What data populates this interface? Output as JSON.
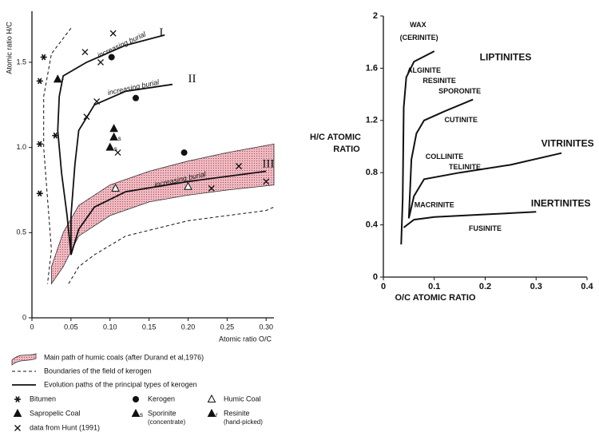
{
  "chart_data": [
    {
      "type": "scatter",
      "x_label": "Atomic ratio O/C",
      "y_label": "Atomic ratio H/C",
      "xlim": [
        0,
        0.31
      ],
      "ylim": [
        0,
        1.8
      ],
      "xticks": [
        0,
        0.05,
        {
          "value": 0.1,
          "label": "0.10"
        },
        0.15,
        {
          "value": 0.2,
          "label": "0.20"
        },
        0.25,
        {
          "value": 0.3,
          "label": "0.30"
        }
      ],
      "yticks": [
        0,
        0.5,
        {
          "value": 1.0,
          "label": "1.0"
        },
        1.5
      ],
      "band": {
        "name": "Main path of humic coals (after Durand et al,1976)",
        "color": "#f2b8c0",
        "x": [
          0.025,
          0.04,
          0.06,
          0.1,
          0.15,
          0.2,
          0.25,
          0.31
        ],
        "upper": [
          0.3,
          0.5,
          0.66,
          0.78,
          0.86,
          0.92,
          0.97,
          1.02
        ],
        "lower": [
          0.2,
          0.3,
          0.48,
          0.6,
          0.68,
          0.72,
          0.75,
          0.78
        ]
      },
      "boundaries": {
        "name": "Boundaries of the field of kerogen",
        "lines": [
          {
            "x": [
              0.05,
              0.025,
              0.015,
              0.015,
              0.02,
              0.025,
              0.02
            ],
            "values": [
              1.7,
              1.55,
              1.3,
              1.0,
              0.7,
              0.4,
              0.2
            ]
          },
          {
            "x": [
              0.047,
              0.06,
              0.08,
              0.12,
              0.2,
              0.3,
              0.31
            ],
            "values": [
              0.2,
              0.3,
              0.37,
              0.48,
              0.57,
              0.63,
              0.65
            ]
          }
        ]
      },
      "paths": {
        "name": "Evolution paths of the principal types of kerogen",
        "lines": [
          {
            "label": "I",
            "x": [
              0.17,
              0.12,
              0.07,
              0.04,
              0.035,
              0.033,
              0.038,
              0.045,
              0.05
            ],
            "values": [
              1.66,
              1.6,
              1.5,
              1.42,
              1.3,
              1.1,
              0.85,
              0.6,
              0.37
            ]
          },
          {
            "label": "II",
            "x": [
              0.18,
              0.12,
              0.08,
              0.06,
              0.055,
              0.05,
              0.05
            ],
            "values": [
              1.37,
              1.33,
              1.25,
              1.1,
              0.9,
              0.6,
              0.37
            ]
          },
          {
            "label": "III",
            "x": [
              0.3,
              0.2,
              0.12,
              0.08,
              0.06,
              0.05
            ],
            "values": [
              0.86,
              0.8,
              0.74,
              0.65,
              0.52,
              0.37
            ]
          }
        ]
      },
      "annotations": [
        "increasing burial",
        "increasing burial",
        "increasing burial"
      ],
      "series": [
        {
          "name": "Bitumen",
          "marker": "asterisk",
          "x": [
            0.01,
            0.015,
            0.01,
            0.01,
            0.03
          ],
          "values": [
            1.39,
            1.53,
            1.02,
            0.73,
            1.07
          ]
        },
        {
          "name": "Kerogen",
          "marker": "circle",
          "x": [
            0.102,
            0.133,
            0.195
          ],
          "values": [
            1.53,
            1.29,
            0.97
          ]
        },
        {
          "name": "Humic Coal",
          "marker": "open-triangle",
          "x": [
            0.107,
            0.2
          ],
          "values": [
            0.76,
            0.77
          ]
        },
        {
          "name": "Sapropelic Coal",
          "marker": "triangle",
          "x": [
            0.105
          ],
          "values": [
            1.11
          ]
        },
        {
          "name": "Sporinite",
          "detail": "(concentrate)",
          "tag": "s",
          "marker": "triangle",
          "x": [
            0.105,
            0.1
          ],
          "values": [
            1.06,
            1.0
          ]
        },
        {
          "name": "Resinite",
          "detail": "(hand-picked)",
          "tag": "r",
          "marker": "triangle",
          "x": [
            0.033
          ],
          "values": [
            1.4
          ]
        },
        {
          "name": "data from Hunt (1991)",
          "marker": "cross",
          "x": [
            0.104,
            0.068,
            0.088,
            0.083,
            0.07,
            0.11,
            0.23,
            0.265,
            0.3
          ],
          "values": [
            1.67,
            1.56,
            1.5,
            1.27,
            1.18,
            0.97,
            0.76,
            0.89,
            0.8
          ]
        }
      ]
    },
    {
      "type": "line",
      "x_label": "O/C    ATOMIC    RATIO",
      "y_label": [
        "H/C  ATOMIC",
        "RATIO"
      ],
      "xlim": [
        0,
        0.4
      ],
      "ylim": [
        0,
        2
      ],
      "xticks": [
        0,
        0.1,
        0.2,
        0.3,
        0.4
      ],
      "yticks": [
        0,
        0.4,
        0.8,
        1.2,
        1.6,
        2
      ],
      "series": [
        {
          "name": "WAX",
          "x": [
            0.035,
            0.038,
            0.04,
            0.045,
            0.06,
            0.1
          ],
          "values": [
            0.25,
            0.6,
            1.3,
            1.53,
            1.65,
            1.73
          ]
        },
        {
          "name": "CUTINITE",
          "x": [
            0.05,
            0.055,
            0.065,
            0.08,
            0.12,
            0.176
          ],
          "values": [
            0.45,
            0.9,
            1.1,
            1.2,
            1.27,
            1.36
          ]
        },
        {
          "name": "VITRINITES",
          "x": [
            0.05,
            0.06,
            0.08,
            0.15,
            0.25,
            0.35
          ],
          "values": [
            0.45,
            0.62,
            0.75,
            0.8,
            0.86,
            0.95
          ]
        },
        {
          "name": "INERTINITES",
          "x": [
            0.04,
            0.06,
            0.1,
            0.2,
            0.3
          ],
          "values": [
            0.38,
            0.44,
            0.46,
            0.48,
            0.5
          ]
        }
      ],
      "annotations": [
        {
          "text": "(CERINITE)",
          "x": 0.07,
          "y": 1.83
        },
        {
          "text": "LIPTINITES",
          "x": 0.24,
          "y": 1.68
        },
        {
          "text": "ALGINITE",
          "x": 0.08,
          "y": 1.58
        },
        {
          "text": "RESINITE",
          "x": 0.11,
          "y": 1.5
        },
        {
          "text": "SPORONITE",
          "x": 0.15,
          "y": 1.42
        },
        {
          "text": "COLLINITE",
          "x": 0.12,
          "y": 0.92
        },
        {
          "text": "TELINITE",
          "x": 0.16,
          "y": 0.84
        },
        {
          "text": "MACRINITE",
          "x": 0.1,
          "y": 0.55
        },
        {
          "text": "FUSINITE",
          "x": 0.2,
          "y": 0.37
        }
      ]
    }
  ]
}
